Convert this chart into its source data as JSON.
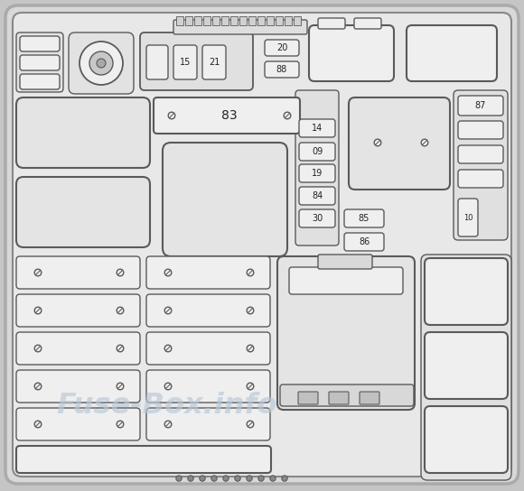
{
  "fig_w": 5.8,
  "fig_h": 5.44,
  "dpi": 100,
  "bg_outer": "#c5c5c5",
  "bg_board": "#e8e8e8",
  "bg_comp": "#efefef",
  "line_color": "#5a5a5a",
  "lw": 1.0,
  "lw2": 1.5,
  "watermark": "Fuse-Box.info",
  "watermark_color": "#b8c8d8",
  "watermark_alpha": 0.65
}
